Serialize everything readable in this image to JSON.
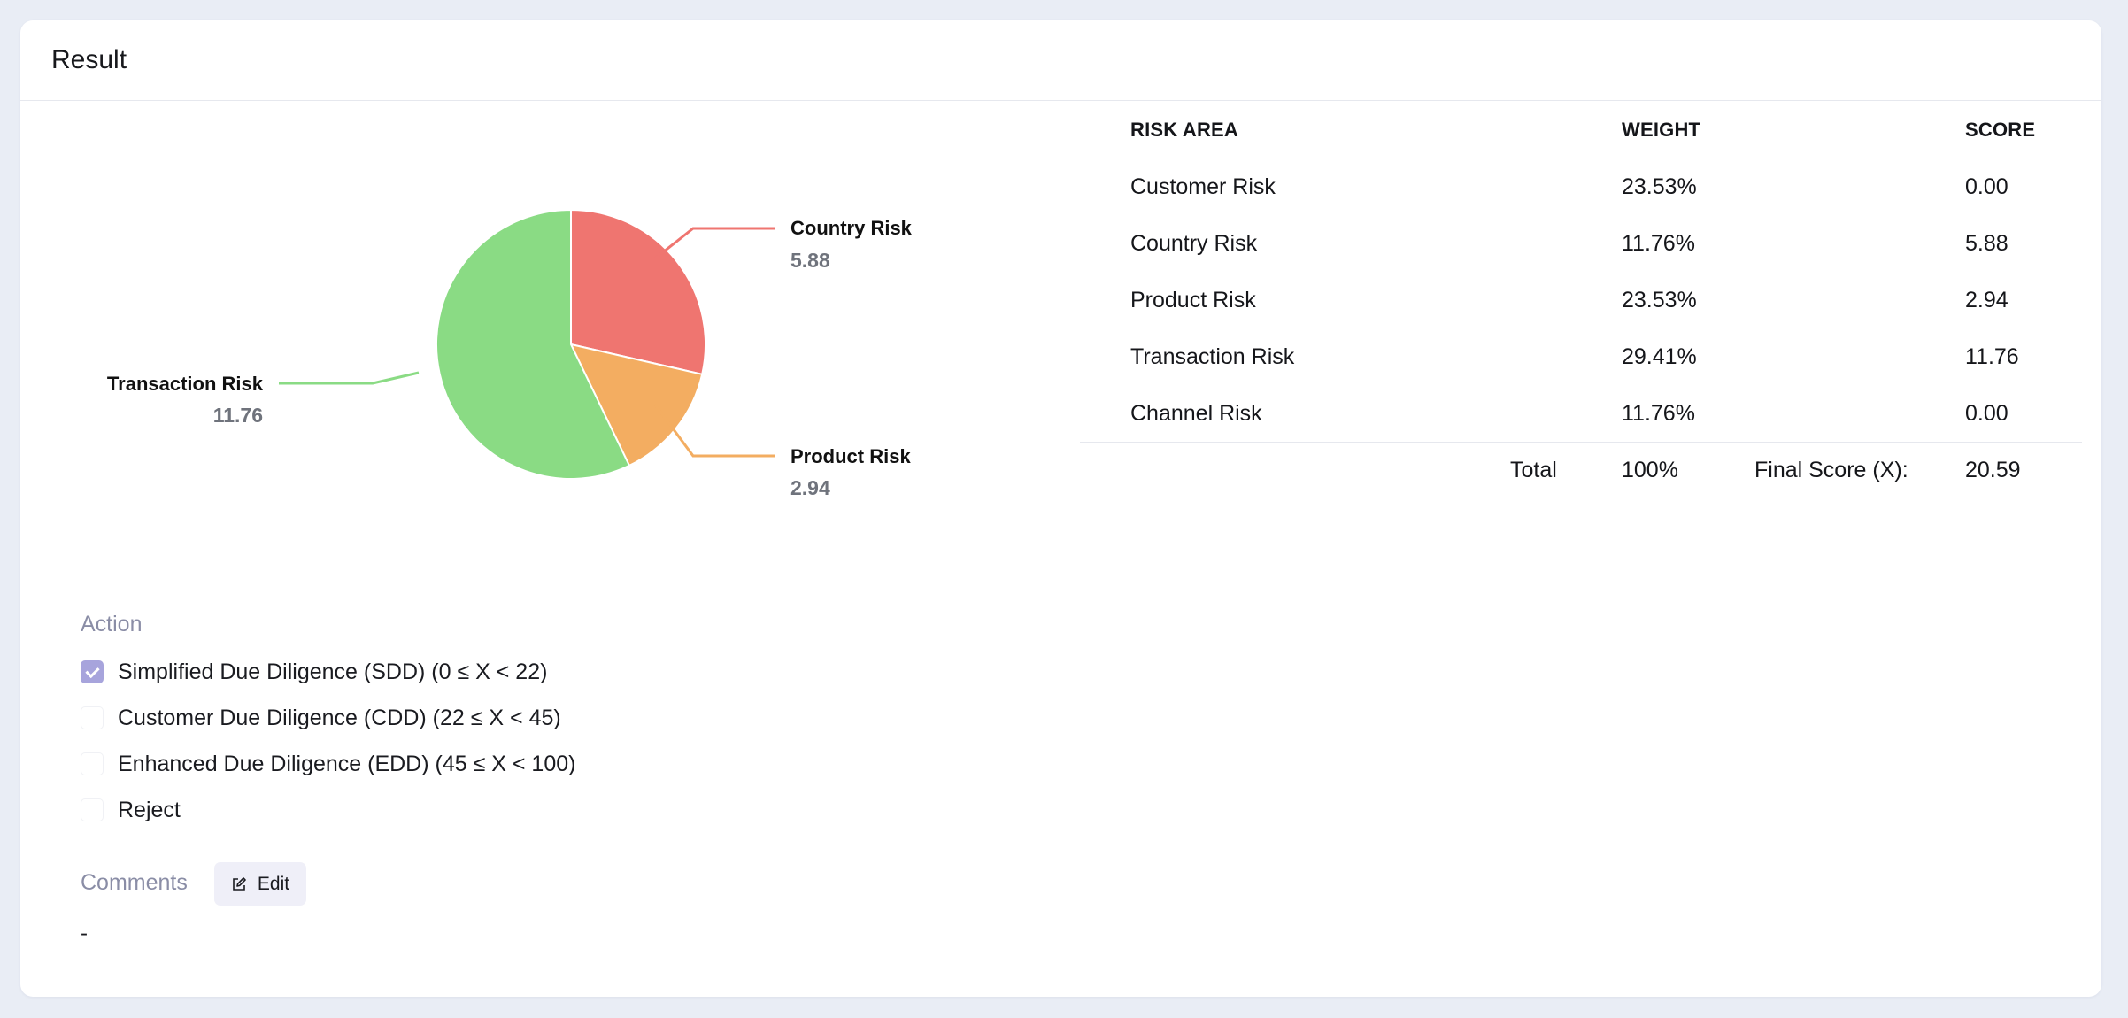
{
  "card": {
    "title": "Result"
  },
  "chart_data": {
    "type": "pie",
    "slices": [
      {
        "label": "Country Risk",
        "value": 5.88,
        "color": "#ef7570"
      },
      {
        "label": "Product Risk",
        "value": 2.94,
        "color": "#f3ad61"
      },
      {
        "label": "Transaction Risk",
        "value": 11.76,
        "color": "#8adb84"
      }
    ],
    "labels": {
      "country": {
        "name": "Country Risk",
        "value": "5.88"
      },
      "product": {
        "name": "Product Risk",
        "value": "2.94"
      },
      "transaction": {
        "name": "Transaction Risk",
        "value": "11.76"
      }
    }
  },
  "table": {
    "headers": {
      "area": "RISK AREA",
      "weight": "WEIGHT",
      "score": "SCORE"
    },
    "rows": [
      {
        "area": "Customer Risk",
        "weight": "23.53%",
        "score": "0.00"
      },
      {
        "area": "Country Risk",
        "weight": "11.76%",
        "score": "5.88"
      },
      {
        "area": "Product Risk",
        "weight": "23.53%",
        "score": "2.94"
      },
      {
        "area": "Transaction Risk",
        "weight": "29.41%",
        "score": "11.76"
      },
      {
        "area": "Channel Risk",
        "weight": "11.76%",
        "score": "0.00"
      }
    ],
    "total": {
      "label": "Total",
      "weight": "100%",
      "final_label": "Final Score (X):",
      "final_value": "20.59"
    }
  },
  "action": {
    "label": "Action",
    "options": [
      {
        "text": "Simplified Due Diligence (SDD) (0 ≤ X < 22)",
        "checked": true
      },
      {
        "text": "Customer Due Diligence (CDD) (22 ≤ X < 45)",
        "checked": false
      },
      {
        "text": "Enhanced Due Diligence (EDD) (45 ≤ X < 100)",
        "checked": false
      },
      {
        "text": "Reject",
        "checked": false
      }
    ]
  },
  "comments": {
    "label": "Comments",
    "edit_label": "Edit",
    "edit_icon": "edit-icon",
    "value": "-"
  }
}
